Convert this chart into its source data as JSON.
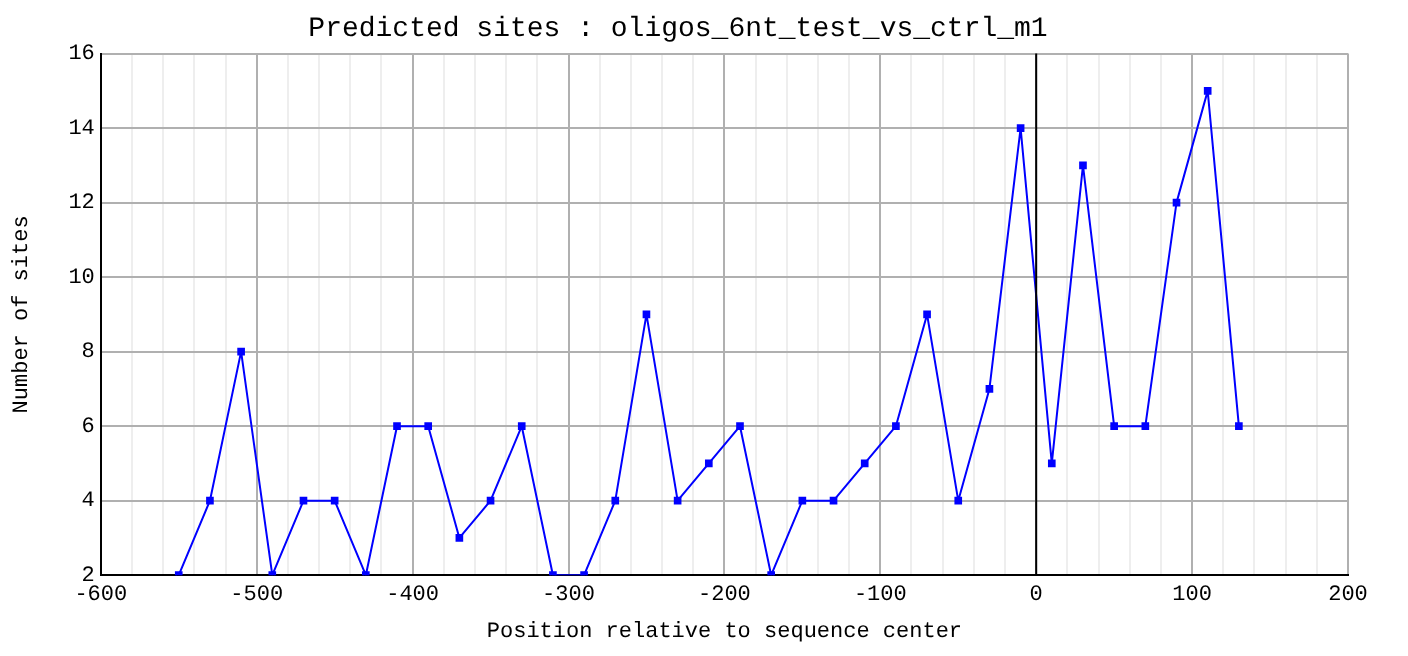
{
  "chart_data": {
    "type": "line",
    "title": "Predicted sites : oligos_6nt_test_vs_ctrl_m1",
    "xlabel": "Position relative to sequence center",
    "ylabel": "Number of sites",
    "x": [
      -550,
      -530,
      -510,
      -490,
      -470,
      -450,
      -430,
      -410,
      -390,
      -370,
      -350,
      -330,
      -310,
      -290,
      -270,
      -250,
      -230,
      -210,
      -190,
      -170,
      -150,
      -130,
      -110,
      -90,
      -70,
      -50,
      -30,
      -10,
      10,
      30,
      50,
      70,
      90,
      110,
      130
    ],
    "series": [
      {
        "color": "#0000ff",
        "values": [
          2,
          4,
          8,
          2,
          4,
          4,
          2,
          6,
          6,
          3,
          4,
          6,
          2,
          2,
          4,
          9,
          4,
          5,
          6,
          2,
          4,
          4,
          5,
          6,
          9,
          4,
          7,
          14,
          5,
          13,
          6,
          6,
          12,
          15,
          6
        ]
      }
    ],
    "xlim": [
      -600,
      200
    ],
    "xticks": [
      -600,
      {
        "value": -580,
        "label": null
      },
      {
        "value": -560,
        "label": null
      },
      {
        "value": -540,
        "label": null
      },
      {
        "value": -520,
        "label": null
      },
      -500,
      {
        "value": -480,
        "label": null
      },
      {
        "value": -460,
        "label": null
      },
      {
        "value": -440,
        "label": null
      },
      {
        "value": -420,
        "label": null
      },
      -400,
      {
        "value": -380,
        "label": null
      },
      {
        "value": -360,
        "label": null
      },
      {
        "value": -340,
        "label": null
      },
      {
        "value": -320,
        "label": null
      },
      -300,
      {
        "value": -280,
        "label": null
      },
      {
        "value": -260,
        "label": null
      },
      {
        "value": -240,
        "label": null
      },
      {
        "value": -220,
        "label": null
      },
      -200,
      {
        "value": -180,
        "label": null
      },
      {
        "value": -160,
        "label": null
      },
      {
        "value": -140,
        "label": null
      },
      {
        "value": -120,
        "label": null
      },
      -100,
      {
        "value": -80,
        "label": null
      },
      {
        "value": -60,
        "label": null
      },
      {
        "value": -40,
        "label": null
      },
      {
        "value": -20,
        "label": null
      },
      0,
      {
        "value": 20,
        "label": null
      },
      {
        "value": 40,
        "label": null
      },
      {
        "value": 60,
        "label": null
      },
      {
        "value": 80,
        "label": null
      },
      100,
      {
        "value": 120,
        "label": null
      },
      {
        "value": 140,
        "label": null
      },
      {
        "value": 160,
        "label": null
      },
      {
        "value": 180,
        "label": null
      },
      200
    ],
    "ylim": [
      2,
      16
    ],
    "yticks": [
      2,
      4,
      6,
      8,
      10,
      12,
      14,
      16
    ],
    "ref_lines": [
      {
        "axis": "x",
        "value": 0,
        "color": "#000000"
      }
    ],
    "grid": true,
    "legend": false,
    "marker": "square",
    "line_style": "solid"
  }
}
